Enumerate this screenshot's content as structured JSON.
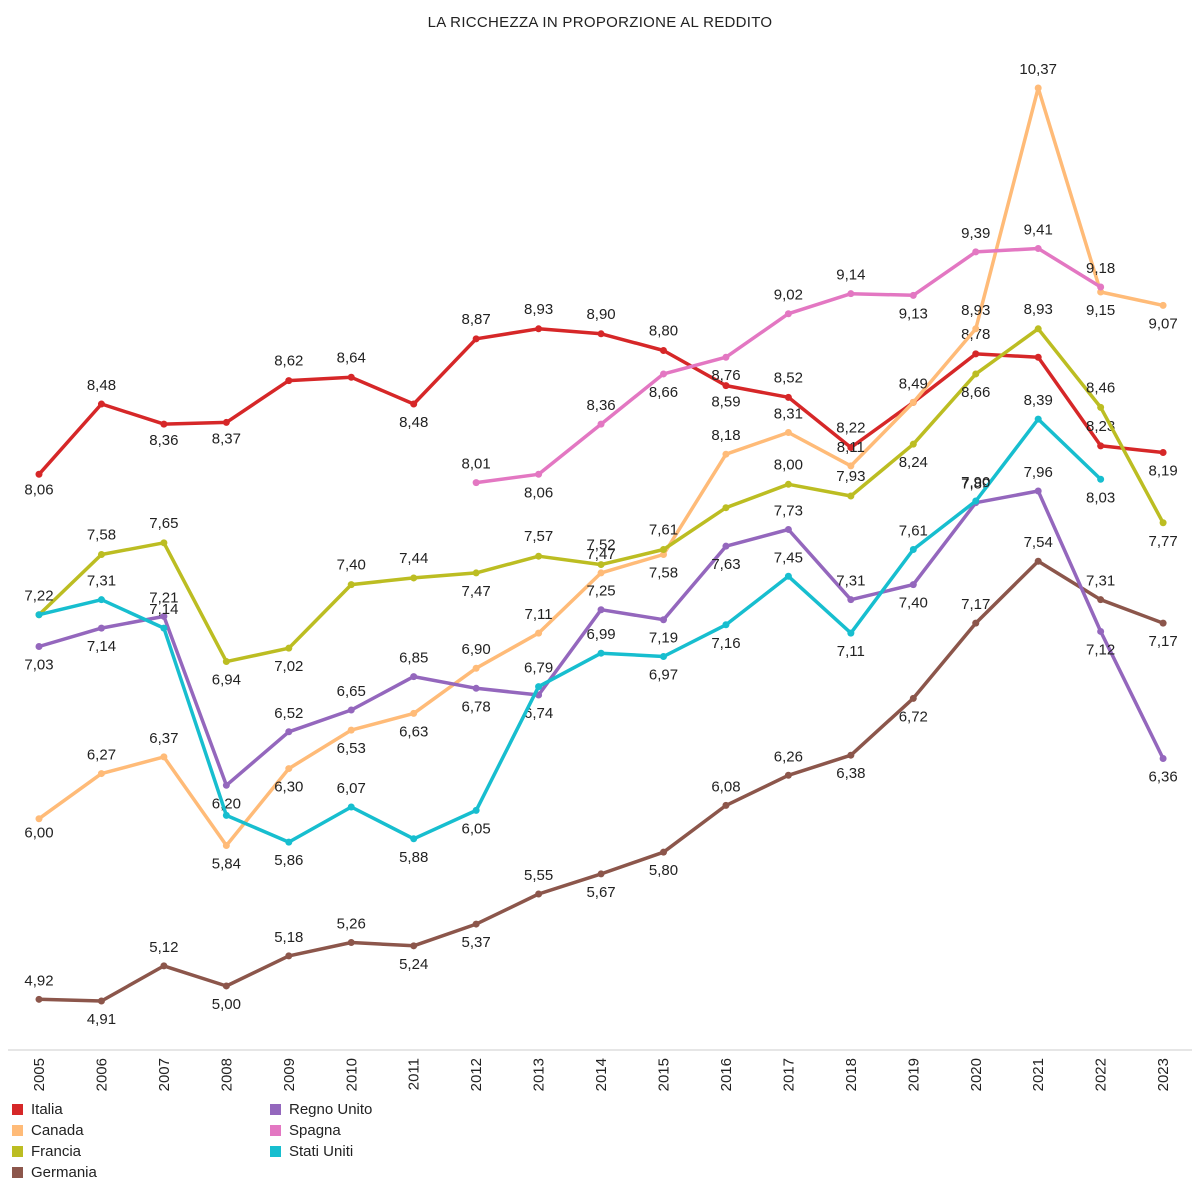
{
  "chart_data": {
    "type": "line",
    "title": "LA RICCHEZZA IN PROPORZIONE AL REDDITO",
    "xlabel": "",
    "ylabel": "",
    "ylim": [
      4.5,
      10.6
    ],
    "grid": false,
    "legend_position": "bottom-left",
    "x": [
      "2005",
      "2006",
      "2007",
      "2008",
      "2009",
      "2010",
      "2011",
      "2012",
      "2013",
      "2014",
      "2015",
      "2016",
      "2017",
      "2018",
      "2019",
      "2020",
      "2021",
      "2022",
      "2023"
    ],
    "series": [
      {
        "name": "Italia",
        "color": "#d62728",
        "values": [
          8.06,
          8.48,
          8.36,
          8.37,
          8.62,
          8.64,
          8.48,
          8.87,
          8.93,
          8.9,
          8.8,
          8.59,
          8.52,
          8.22,
          8.49,
          8.78,
          8.76,
          8.23,
          8.19
        ],
        "labels": [
          "8,06",
          "8,48",
          "8,36",
          "8,37",
          "8,62",
          "8,64",
          "8,48",
          "8,87",
          "8,93",
          "8,90",
          "8,80",
          "8,59",
          "8,52",
          "8,22",
          "",
          "8,78",
          "",
          "8,23",
          "8,19"
        ]
      },
      {
        "name": "Canada",
        "color": "#ffbb78",
        "values": [
          6.0,
          6.27,
          6.37,
          5.84,
          6.3,
          6.53,
          6.63,
          6.9,
          7.11,
          7.47,
          7.58,
          8.18,
          8.31,
          8.11,
          8.49,
          8.93,
          10.37,
          9.15,
          9.07
        ],
        "labels": [
          "6,00",
          "6,27",
          "6,37",
          "5,84",
          "6,30",
          "6,53",
          "6,63",
          "6,90",
          "7,11",
          "7,47",
          "7,58",
          "8,18",
          "8,31",
          "8,11",
          "8,49",
          "8,93",
          "10,37",
          "9,15",
          "9,07"
        ]
      },
      {
        "name": "Francia",
        "color": "#bcbd22",
        "values": [
          7.22,
          7.58,
          7.65,
          6.94,
          7.02,
          7.4,
          7.44,
          7.47,
          7.57,
          7.52,
          7.61,
          7.86,
          8.0,
          7.93,
          8.24,
          8.66,
          8.93,
          8.46,
          7.77
        ],
        "labels": [
          "",
          "7,58",
          "7,65",
          "6,94",
          "7,02",
          "7,40",
          "7,44",
          "7,47",
          "7,57",
          "7,52",
          "7,61",
          "",
          "8,00",
          "7,93",
          "8,24",
          "8,66",
          "8,93",
          "8,46",
          "7,77"
        ]
      },
      {
        "name": "Germania",
        "color": "#8c564b",
        "values": [
          4.92,
          4.91,
          5.12,
          5.0,
          5.18,
          5.26,
          5.24,
          5.37,
          5.55,
          5.67,
          5.8,
          6.08,
          6.26,
          6.38,
          6.72,
          7.17,
          7.54,
          7.31,
          7.17
        ],
        "labels": [
          "4,92",
          "4,91",
          "5,12",
          "5,00",
          "5,18",
          "5,26",
          "5,24",
          "5,37",
          "5,55",
          "5,67",
          "5,80",
          "6,08",
          "6,26",
          "6,38",
          "6,72",
          "7,17",
          "7,54",
          "7,31",
          "7,17"
        ]
      },
      {
        "name": "Regno Unito",
        "color": "#9467bd",
        "values": [
          7.03,
          7.14,
          7.21,
          6.2,
          6.52,
          6.65,
          6.85,
          6.78,
          6.74,
          7.25,
          7.19,
          7.63,
          7.73,
          7.31,
          7.4,
          7.89,
          7.96,
          7.12,
          6.36
        ],
        "labels": [
          "7,03",
          "7,14",
          "7,21",
          "6,20",
          "6,52",
          "6,65",
          "6,85",
          "6,78",
          "6,74",
          "7,25",
          "7,19",
          "7,63",
          "7,73",
          "7,31",
          "7,40",
          "7,89",
          "7,96",
          "7,12",
          "6,36"
        ]
      },
      {
        "name": "Spagna",
        "color": "#e377c2",
        "values": [
          null,
          null,
          null,
          null,
          null,
          null,
          null,
          8.01,
          8.06,
          8.36,
          8.66,
          8.76,
          9.02,
          9.14,
          9.13,
          9.39,
          9.41,
          9.18,
          null
        ],
        "labels": [
          "",
          "",
          "",
          "",
          "",
          "",
          "",
          "8,01",
          "8,06",
          "8,36",
          "8,66",
          "8,76",
          "9,02",
          "9,14",
          "9,13",
          "9,39",
          "9,41",
          "9,18",
          ""
        ]
      },
      {
        "name": "Stati Uniti",
        "color": "#17becf",
        "values": [
          7.22,
          7.31,
          7.14,
          6.02,
          5.86,
          6.07,
          5.88,
          6.05,
          6.79,
          6.99,
          6.97,
          7.16,
          7.45,
          7.11,
          7.61,
          7.9,
          8.39,
          8.03,
          null
        ],
        "labels": [
          "7,22",
          "7,31",
          "7,14",
          "",
          "5,86",
          "6,07",
          "5,88",
          "6,05",
          "6,79",
          "6,99",
          "6,97",
          "7,16",
          "7,45",
          "7,11",
          "7,61",
          "7,90",
          "8,39",
          "8,03",
          ""
        ]
      }
    ]
  }
}
